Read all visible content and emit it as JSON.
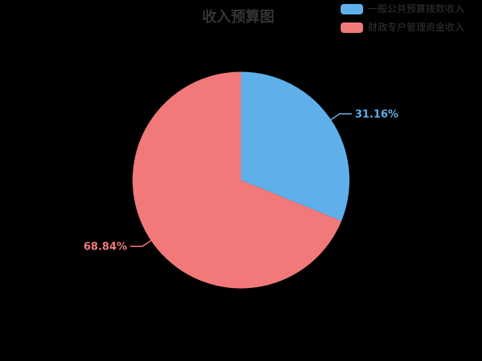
{
  "chart_data": {
    "type": "pie",
    "title": "收入预算图",
    "legend_position": "top-right",
    "start_angle_deg": 90,
    "direction": "clockwise",
    "colors": {
      "background": "#000000",
      "text": "#333333"
    },
    "slices": [
      {
        "label": "一般公共预算拨款收入",
        "value": 31.16,
        "percent_label": "31.16%",
        "color": "#5FB0EA"
      },
      {
        "label": "财政专户管理资金收入",
        "value": 68.84,
        "percent_label": "68.84%",
        "color": "#F27979"
      }
    ]
  }
}
